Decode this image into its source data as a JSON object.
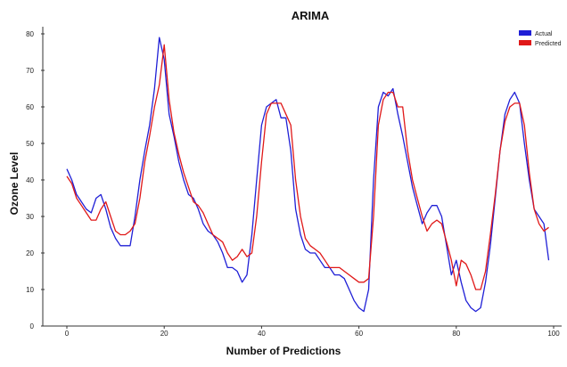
{
  "chart_data": {
    "type": "line",
    "title": "ARIMA",
    "xlabel": "Number of Predictions",
    "ylabel": "Ozone Level",
    "xlim": [
      0,
      100
    ],
    "ylim": [
      0,
      80
    ],
    "xticks": [
      0,
      20,
      40,
      60,
      80,
      100
    ],
    "yticks": [
      0,
      10,
      20,
      30,
      40,
      50,
      60,
      70,
      80
    ],
    "grid": false,
    "legend_position": "top-right",
    "series": [
      {
        "name": "Actual",
        "color": "#1f1fd6",
        "points": [
          [
            0,
            43
          ],
          [
            1,
            40
          ],
          [
            2,
            36
          ],
          [
            3,
            34
          ],
          [
            4,
            32
          ],
          [
            5,
            31
          ],
          [
            6,
            35
          ],
          [
            7,
            36
          ],
          [
            8,
            32
          ],
          [
            9,
            27
          ],
          [
            10,
            24
          ],
          [
            11,
            22
          ],
          [
            12,
            22
          ],
          [
            13,
            22
          ],
          [
            14,
            30
          ],
          [
            15,
            40
          ],
          [
            16,
            48
          ],
          [
            17,
            55
          ],
          [
            18,
            65
          ],
          [
            19,
            79
          ],
          [
            20,
            73
          ],
          [
            21,
            58
          ],
          [
            22,
            52
          ],
          [
            23,
            45
          ],
          [
            24,
            40
          ],
          [
            25,
            36
          ],
          [
            26,
            35
          ],
          [
            27,
            32
          ],
          [
            28,
            28
          ],
          [
            29,
            26
          ],
          [
            30,
            25
          ],
          [
            31,
            23
          ],
          [
            32,
            20
          ],
          [
            33,
            16
          ],
          [
            34,
            16
          ],
          [
            35,
            15
          ],
          [
            36,
            12
          ],
          [
            37,
            14
          ],
          [
            38,
            25
          ],
          [
            39,
            40
          ],
          [
            40,
            55
          ],
          [
            41,
            60
          ],
          [
            42,
            61
          ],
          [
            43,
            62
          ],
          [
            44,
            57
          ],
          [
            45,
            57
          ],
          [
            46,
            48
          ],
          [
            47,
            32
          ],
          [
            48,
            25
          ],
          [
            49,
            21
          ],
          [
            50,
            20
          ],
          [
            51,
            20
          ],
          [
            52,
            18
          ],
          [
            53,
            16
          ],
          [
            54,
            16
          ],
          [
            55,
            14
          ],
          [
            56,
            14
          ],
          [
            57,
            13
          ],
          [
            58,
            10
          ],
          [
            59,
            7
          ],
          [
            60,
            5
          ],
          [
            61,
            4
          ],
          [
            62,
            10
          ],
          [
            63,
            40
          ],
          [
            64,
            60
          ],
          [
            65,
            64
          ],
          [
            66,
            63
          ],
          [
            67,
            65
          ],
          [
            68,
            58
          ],
          [
            69,
            52
          ],
          [
            70,
            45
          ],
          [
            71,
            38
          ],
          [
            72,
            33
          ],
          [
            73,
            28
          ],
          [
            74,
            31
          ],
          [
            75,
            33
          ],
          [
            76,
            33
          ],
          [
            77,
            30
          ],
          [
            78,
            22
          ],
          [
            79,
            14
          ],
          [
            80,
            18
          ],
          [
            81,
            12
          ],
          [
            82,
            7
          ],
          [
            83,
            5
          ],
          [
            84,
            4
          ],
          [
            85,
            5
          ],
          [
            86,
            12
          ],
          [
            87,
            22
          ],
          [
            88,
            35
          ],
          [
            89,
            48
          ],
          [
            90,
            58
          ],
          [
            91,
            62
          ],
          [
            92,
            64
          ],
          [
            93,
            61
          ],
          [
            94,
            50
          ],
          [
            95,
            40
          ],
          [
            96,
            32
          ],
          [
            97,
            30
          ],
          [
            98,
            28
          ],
          [
            99,
            18
          ]
        ]
      },
      {
        "name": "Predicted",
        "color": "#e01818",
        "points": [
          [
            0,
            41
          ],
          [
            1,
            39
          ],
          [
            2,
            35
          ],
          [
            3,
            33
          ],
          [
            4,
            31
          ],
          [
            5,
            29
          ],
          [
            6,
            29
          ],
          [
            7,
            32
          ],
          [
            8,
            34
          ],
          [
            9,
            30
          ],
          [
            10,
            26
          ],
          [
            11,
            25
          ],
          [
            12,
            25
          ],
          [
            13,
            26
          ],
          [
            14,
            28
          ],
          [
            15,
            35
          ],
          [
            16,
            45
          ],
          [
            17,
            52
          ],
          [
            18,
            60
          ],
          [
            19,
            66
          ],
          [
            20,
            77
          ],
          [
            21,
            62
          ],
          [
            22,
            53
          ],
          [
            23,
            47
          ],
          [
            24,
            42
          ],
          [
            25,
            38
          ],
          [
            26,
            34
          ],
          [
            27,
            33
          ],
          [
            28,
            31
          ],
          [
            29,
            28
          ],
          [
            30,
            25
          ],
          [
            31,
            24
          ],
          [
            32,
            23
          ],
          [
            33,
            20
          ],
          [
            34,
            18
          ],
          [
            35,
            19
          ],
          [
            36,
            21
          ],
          [
            37,
            19
          ],
          [
            38,
            20
          ],
          [
            39,
            30
          ],
          [
            40,
            45
          ],
          [
            41,
            58
          ],
          [
            42,
            61
          ],
          [
            43,
            61
          ],
          [
            44,
            61
          ],
          [
            45,
            58
          ],
          [
            46,
            55
          ],
          [
            47,
            40
          ],
          [
            48,
            30
          ],
          [
            49,
            24
          ],
          [
            50,
            22
          ],
          [
            51,
            21
          ],
          [
            52,
            20
          ],
          [
            53,
            18
          ],
          [
            54,
            16
          ],
          [
            55,
            16
          ],
          [
            56,
            16
          ],
          [
            57,
            15
          ],
          [
            58,
            14
          ],
          [
            59,
            13
          ],
          [
            60,
            12
          ],
          [
            61,
            12
          ],
          [
            62,
            13
          ],
          [
            63,
            30
          ],
          [
            64,
            55
          ],
          [
            65,
            62
          ],
          [
            66,
            64
          ],
          [
            67,
            64
          ],
          [
            68,
            60
          ],
          [
            69,
            60
          ],
          [
            70,
            48
          ],
          [
            71,
            40
          ],
          [
            72,
            35
          ],
          [
            73,
            30
          ],
          [
            74,
            26
          ],
          [
            75,
            28
          ],
          [
            76,
            29
          ],
          [
            77,
            28
          ],
          [
            78,
            23
          ],
          [
            79,
            18
          ],
          [
            80,
            11
          ],
          [
            81,
            18
          ],
          [
            82,
            17
          ],
          [
            83,
            14
          ],
          [
            84,
            10
          ],
          [
            85,
            10
          ],
          [
            86,
            15
          ],
          [
            87,
            25
          ],
          [
            88,
            36
          ],
          [
            89,
            48
          ],
          [
            90,
            56
          ],
          [
            91,
            60
          ],
          [
            92,
            61
          ],
          [
            93,
            61
          ],
          [
            94,
            55
          ],
          [
            95,
            42
          ],
          [
            96,
            32
          ],
          [
            97,
            28
          ],
          [
            98,
            26
          ],
          [
            99,
            27
          ]
        ]
      }
    ]
  }
}
